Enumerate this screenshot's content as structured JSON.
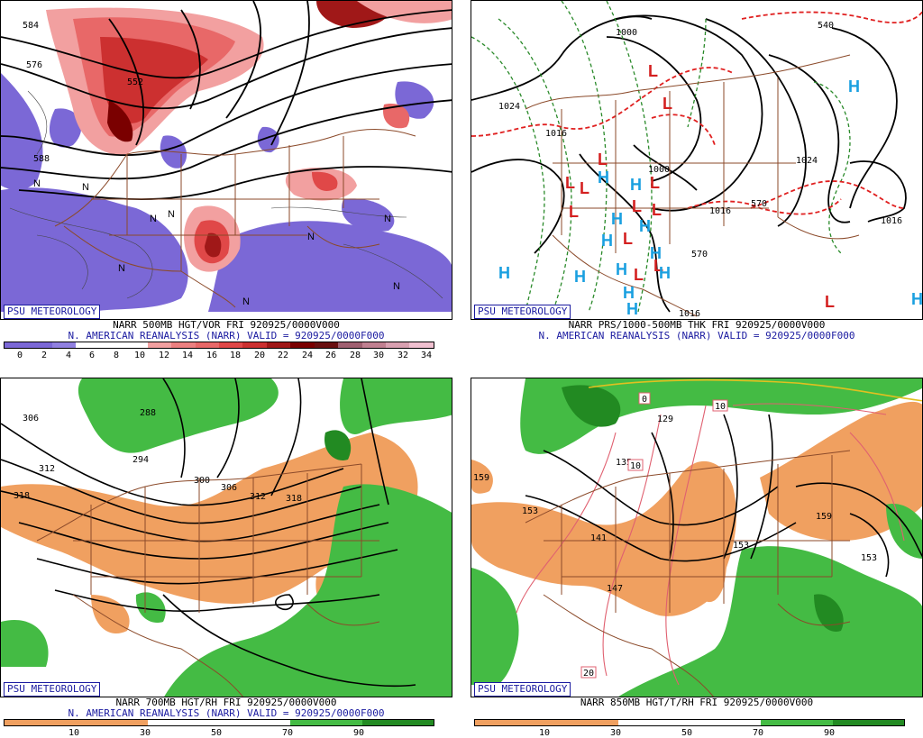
{
  "badge": "PSU METEOROLOGY",
  "panels": {
    "tl": {
      "line1": "NARR 500MB HGT/VOR FRI 920925/0000V000",
      "line2": "N. AMERICAN REANALYSIS (NARR) VALID = 920925/0000F000",
      "ticks": [
        "0",
        "2",
        "4",
        "6",
        "8",
        "10",
        "12",
        "14",
        "16",
        "18",
        "20",
        "22",
        "24",
        "26",
        "28",
        "30",
        "32",
        "34"
      ],
      "labels": {
        "a": "584",
        "b": "576",
        "c": "552",
        "d": "588"
      }
    },
    "tr": {
      "line1": "NARR PRS/1000-500MB THK FRI 920925/0000V000",
      "line2": "N. AMERICAN REANALYSIS (NARR) VALID = 920925/0000F000",
      "labels": {
        "a": "1024",
        "b": "1000",
        "c": "1016",
        "d": "1000",
        "e": "1024",
        "f": "1016",
        "g": "1016",
        "h": "570",
        "i": "540",
        "j": "570",
        "k": "1016"
      },
      "low_symbol": "L",
      "high_symbol": "H"
    },
    "bl": {
      "line1": "NARR 700MB HGT/RH FRI 920925/0000V000",
      "line2": "N. AMERICAN REANALYSIS (NARR) VALID = 920925/0000F000",
      "ticks": [
        "10",
        "30",
        "50",
        "70",
        "90"
      ],
      "labels": {
        "a": "306",
        "b": "288",
        "c": "294",
        "d": "312",
        "e": "318",
        "f": "300",
        "g": "306",
        "h": "312",
        "i": "318"
      }
    },
    "br": {
      "line1": "NARR 850MB HGT/T/RH FRI 920925/0000V000",
      "ticks": [
        "10",
        "30",
        "50",
        "70",
        "90"
      ],
      "labels": {
        "a": "159",
        "b": "153",
        "c": "141",
        "d": "147",
        "e": "153",
        "f": "159",
        "g": "153",
        "h": "129",
        "i": "135"
      },
      "temp_labels": {
        "a": "0",
        "b": "10",
        "c": "10",
        "d": "20"
      }
    }
  },
  "colors": {
    "vor_neg": "#7b68d6",
    "vor_pos": "#e04848",
    "vor_dark": "#7a0000",
    "rh_dry": "#f0a060",
    "rh_wet": "#44bb44",
    "rh_wet_dark": "#228a22",
    "border": "#8b4a2a",
    "low": "#d42020",
    "high": "#1aa0e0"
  }
}
